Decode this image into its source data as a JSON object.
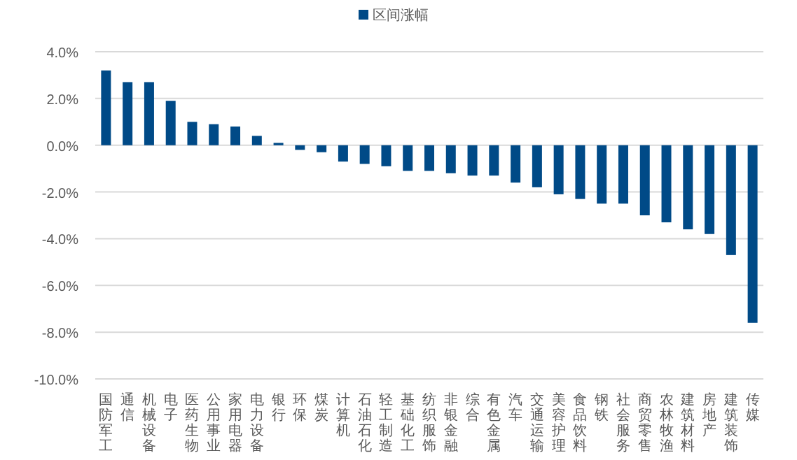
{
  "chart_data": {
    "type": "bar",
    "categories": [
      "国防军工",
      "通信",
      "机械设备",
      "电子",
      "医药生物",
      "公用事业",
      "家用电器",
      "电力设备",
      "银行",
      "环保",
      "煤炭",
      "计算机",
      "石油石化",
      "轻工制造",
      "基础化工",
      "纺织服饰",
      "非银金融",
      "综合",
      "有色金属",
      "汽车",
      "交通运输",
      "美容护理",
      "食品饮料",
      "钢铁",
      "社会服务",
      "商贸零售",
      "农林牧渔",
      "建筑材料",
      "房地产",
      "建筑装饰",
      "传媒"
    ],
    "series": [
      {
        "name": "区间涨幅",
        "color": "#004a87",
        "values": [
          3.2,
          2.7,
          2.7,
          1.9,
          1.0,
          0.9,
          0.8,
          0.4,
          0.1,
          -0.2,
          -0.3,
          -0.7,
          -0.8,
          -0.9,
          -1.1,
          -1.1,
          -1.2,
          -1.3,
          -1.3,
          -1.6,
          -1.8,
          -2.1,
          -2.3,
          -2.5,
          -2.5,
          -3.0,
          -3.3,
          -3.6,
          -3.8,
          -4.7,
          -7.6
        ]
      }
    ],
    "ylim": [
      -10,
      4
    ],
    "yticks": [
      {
        "value": -10,
        "label": "-10.0%"
      },
      {
        "value": -8,
        "label": "-8.0%"
      },
      {
        "value": -6,
        "label": "-6.0%"
      },
      {
        "value": -4,
        "label": "-4.0%"
      },
      {
        "value": -2,
        "label": "-2.0%"
      },
      {
        "value": 0,
        "label": "0.0%"
      },
      {
        "value": 2,
        "label": "2.0%"
      },
      {
        "value": 4,
        "label": "4.0%"
      }
    ],
    "grid": "y",
    "legend": "top"
  }
}
